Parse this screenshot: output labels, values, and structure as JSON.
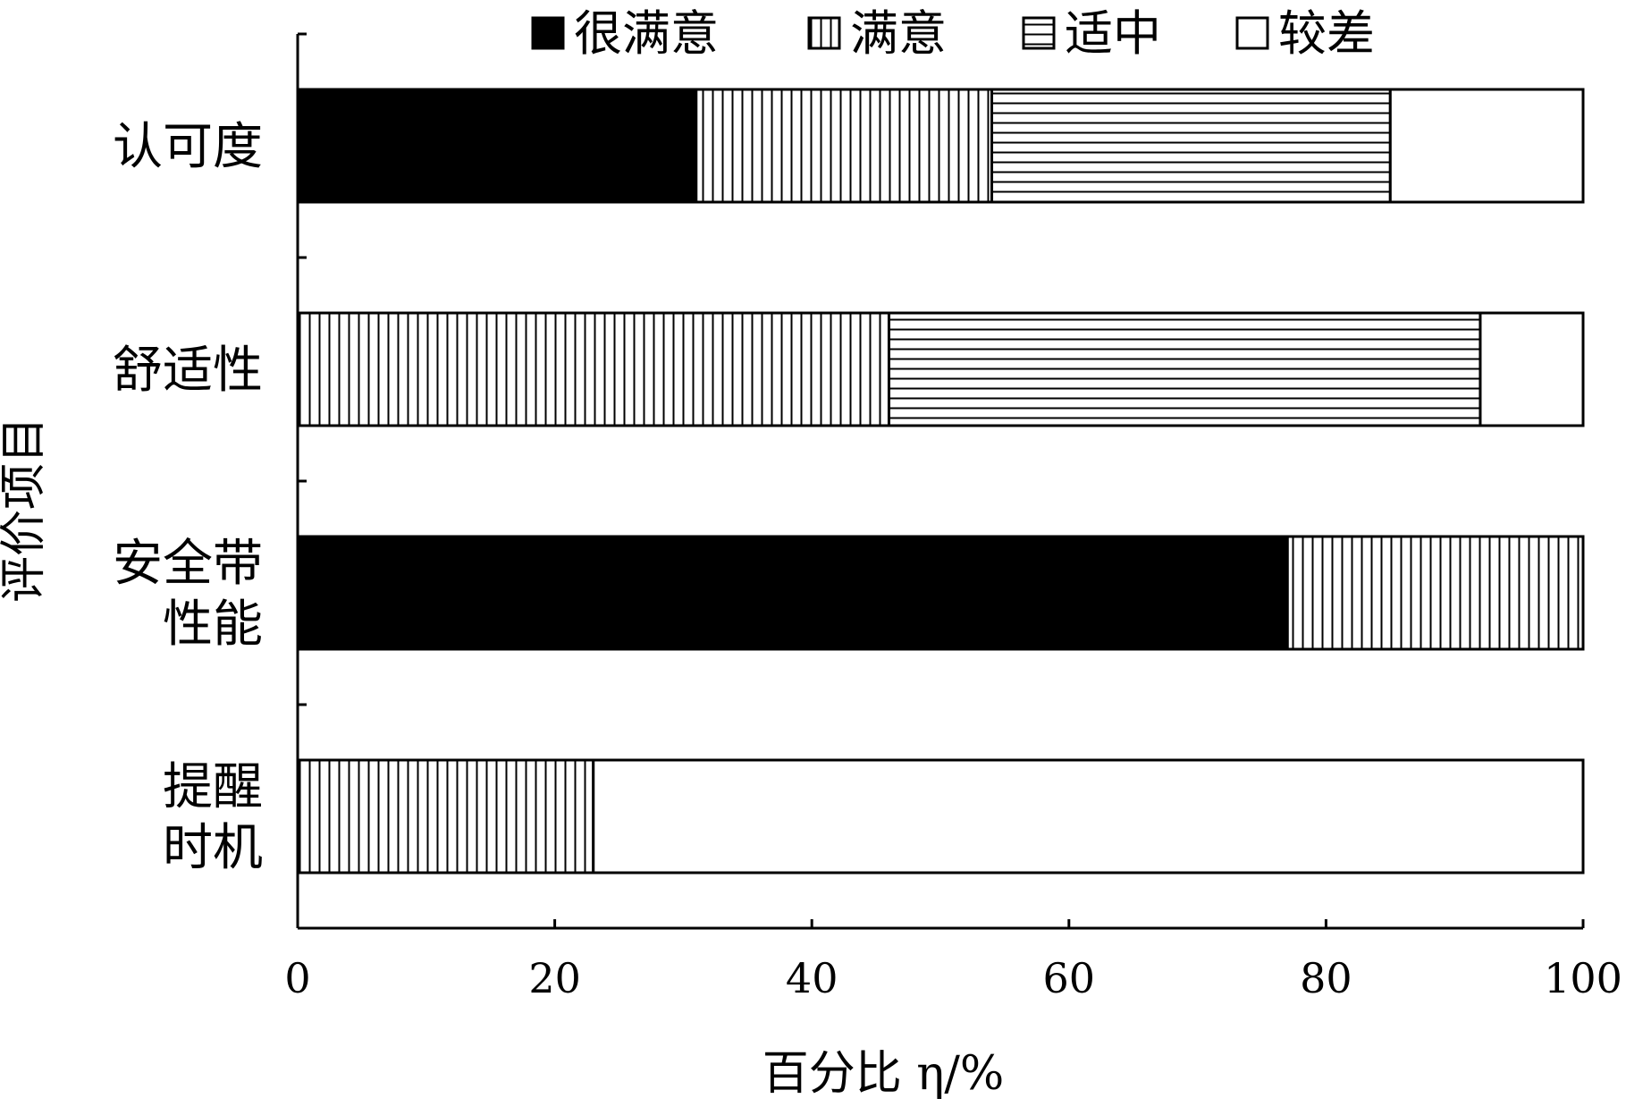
{
  "chart_data": {
    "type": "bar",
    "orientation": "horizontal",
    "stacked": true,
    "categories": [
      "认可度",
      "舒适性",
      "安全带性能",
      "提醒时机"
    ],
    "category_lines": [
      [
        "认可度"
      ],
      [
        "舒适性"
      ],
      [
        "安全带",
        "性能"
      ],
      [
        "提醒",
        "时机"
      ]
    ],
    "series": [
      {
        "name": "很满意",
        "values": [
          31,
          0,
          77,
          0
        ],
        "pattern": "solid",
        "color": "#000000"
      },
      {
        "name": "满意",
        "values": [
          23,
          46,
          23,
          23
        ],
        "pattern": "vertical-lines",
        "color": "#000000"
      },
      {
        "name": "适中",
        "values": [
          31,
          46,
          0,
          0
        ],
        "pattern": "horizontal-lines",
        "color": "#000000"
      },
      {
        "name": "较差",
        "values": [
          15,
          8,
          0,
          77
        ],
        "pattern": "empty",
        "color": "#ffffff"
      }
    ],
    "xlabel": "百分比 η/%",
    "ylabel": "评价项目",
    "xlim": [
      0,
      100
    ],
    "xticks": [
      "0",
      "20",
      "40",
      "60",
      "80",
      "100"
    ],
    "grid": false,
    "legend_position": "top"
  }
}
